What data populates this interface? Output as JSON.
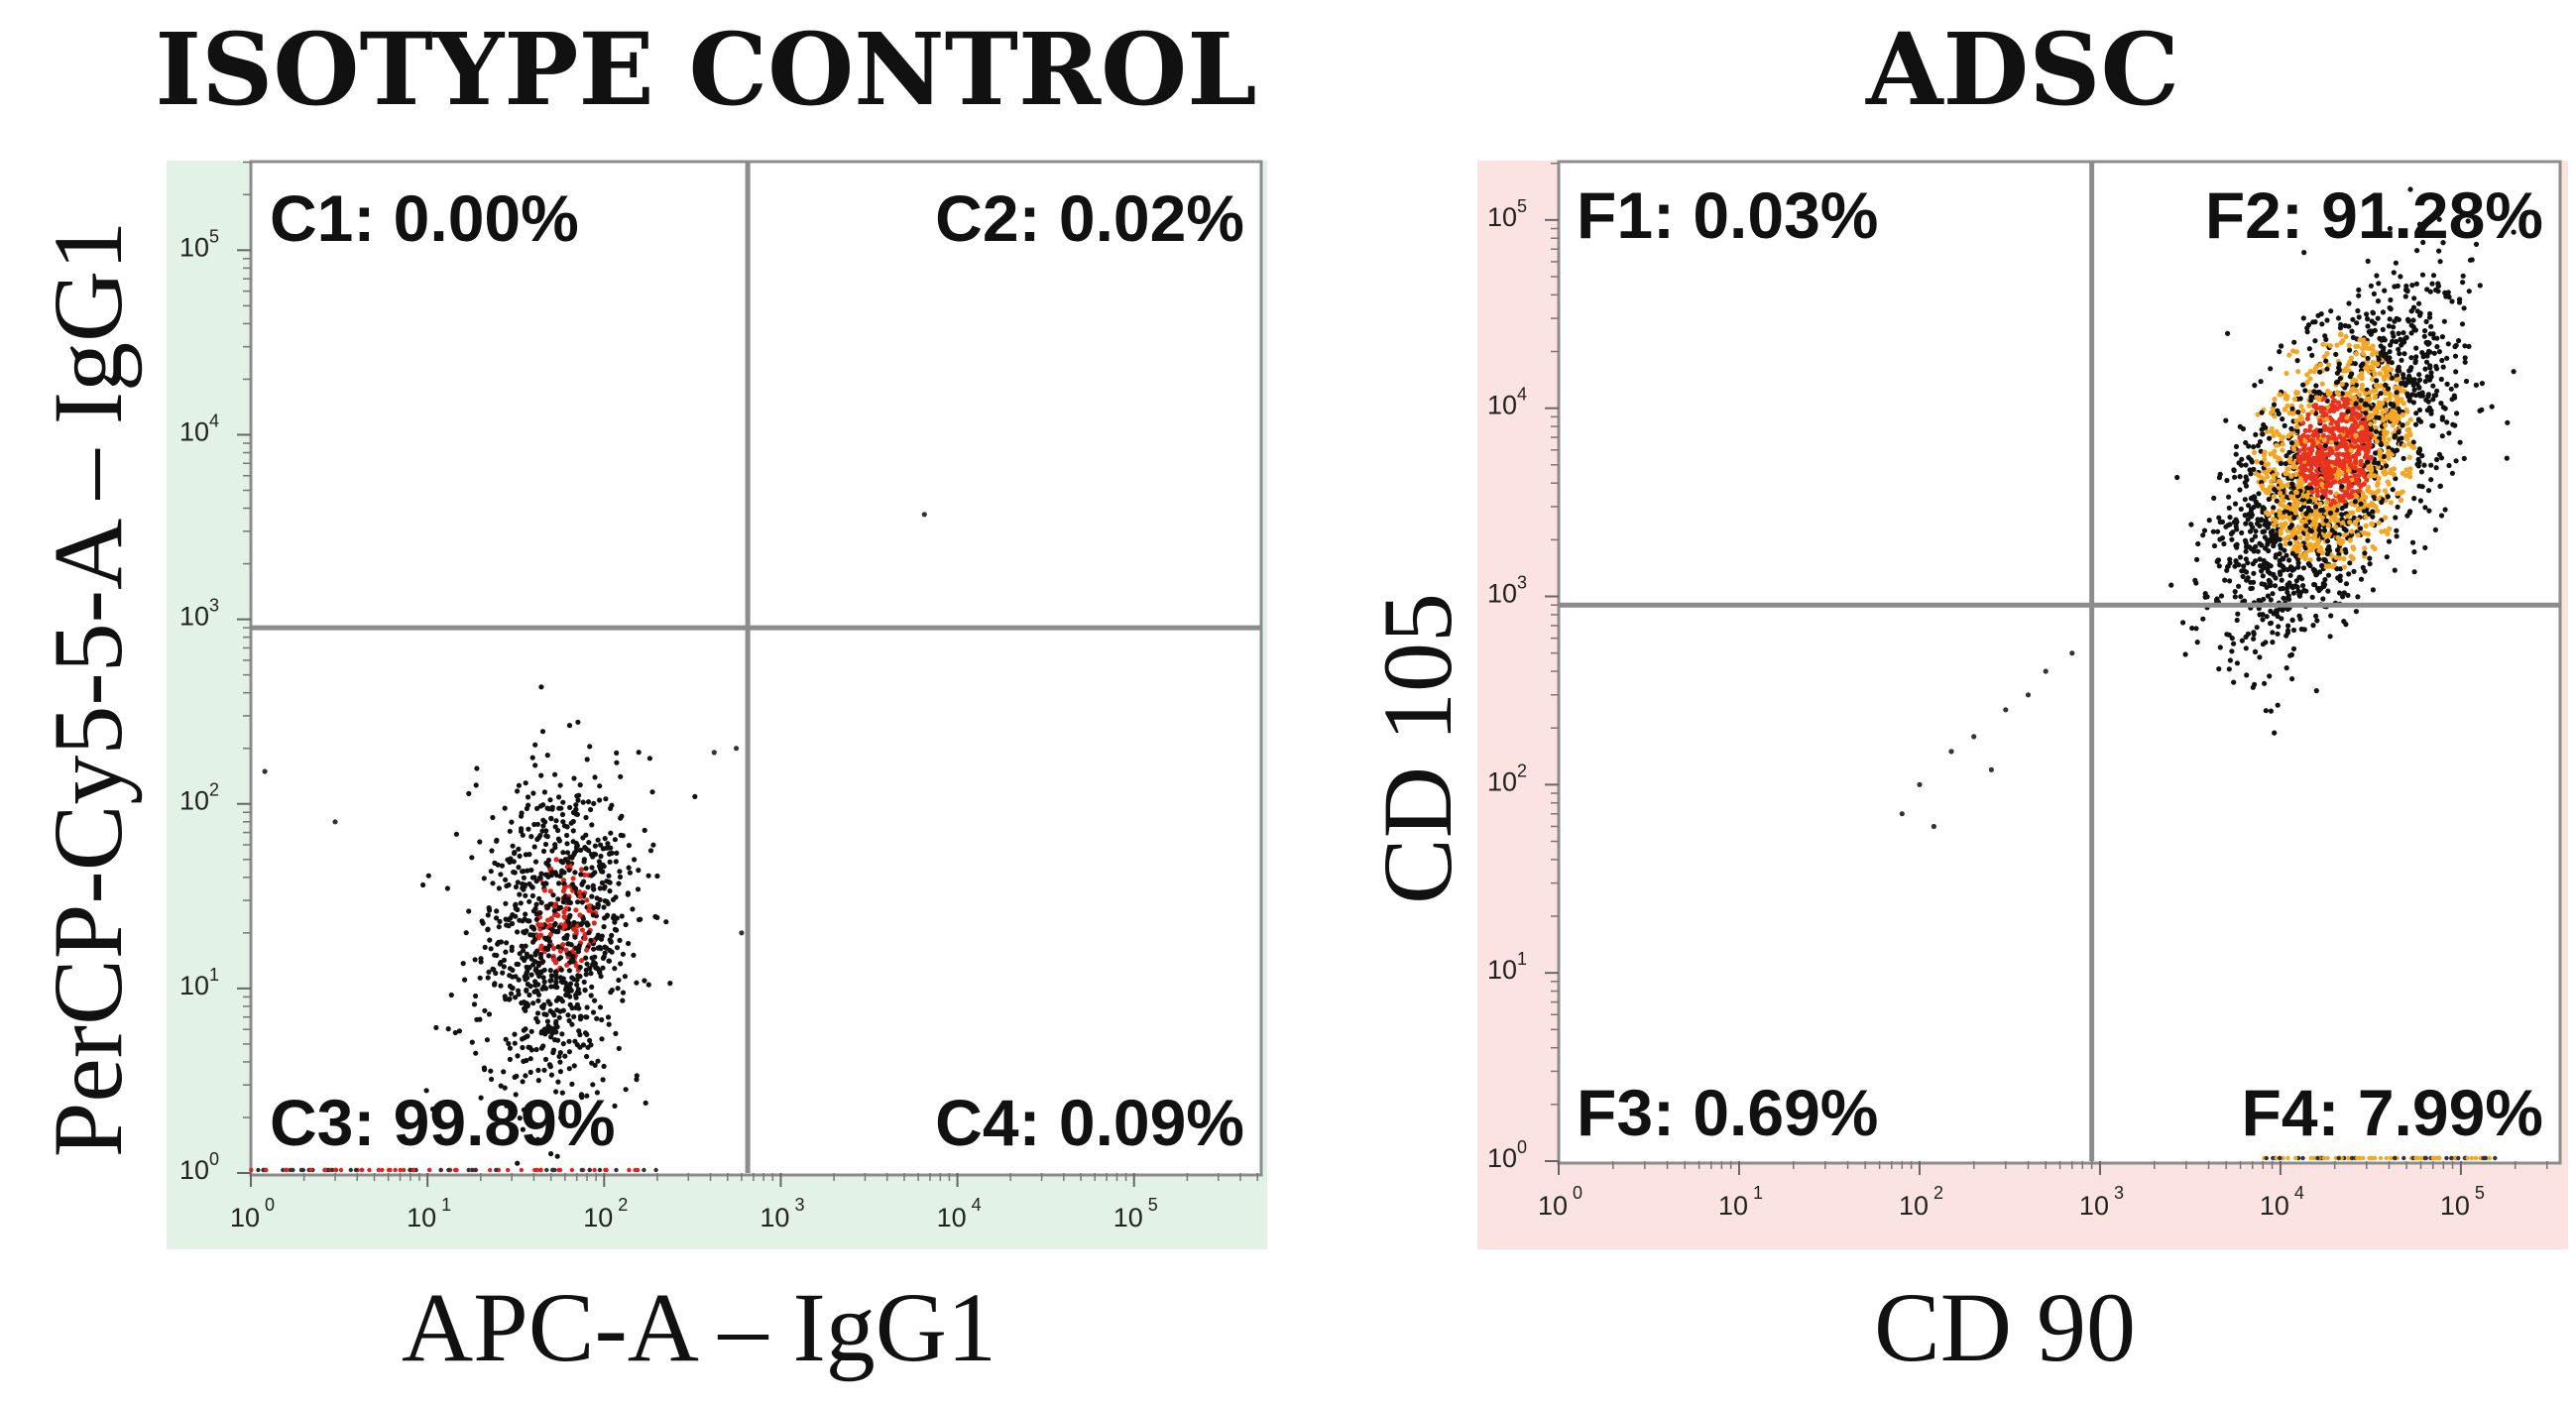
{
  "chart_data": [
    {
      "type": "scatter",
      "title": "ISOTYPE CONTROL",
      "xlabel": "APC-A – IgG1",
      "ylabel": "PerCP-Cy5-5-A – IgG1",
      "xscale": "log",
      "yscale": "log",
      "xlim": [
        1,
        500000
      ],
      "ylim": [
        1,
        300000
      ],
      "xticks": [
        "10",
        "10",
        "10",
        "10",
        "10",
        "10"
      ],
      "xtick_exponents": [
        "0",
        "1",
        "2",
        "3",
        "4",
        "5"
      ],
      "yticks": [
        "10",
        "10",
        "10",
        "10",
        "10",
        "10"
      ],
      "ytick_exponents": [
        "0",
        "1",
        "2",
        "3",
        "4",
        "5"
      ],
      "gate": {
        "x": 650,
        "y": 900
      },
      "background_tint": "#e3f2e6",
      "quadrant_labels": [
        {
          "id": "C1",
          "text": "C1: 0.00%",
          "position": "top-left"
        },
        {
          "id": "C2",
          "text": "C2: 0.02%",
          "position": "top-right"
        },
        {
          "id": "C3",
          "text": "C3: 99.89%",
          "position": "bottom-left"
        },
        {
          "id": "C4",
          "text": "C4: 0.09%",
          "position": "bottom-right"
        }
      ],
      "population": {
        "x_center": 55,
        "y_center": 20,
        "x_log_sd": 0.22,
        "y_log_sd": 0.42,
        "correlation": 0.15,
        "count": 1000,
        "color": "#111111",
        "dense_color": "#e0241b",
        "dense_x_center": 60,
        "dense_y_center": 25
      },
      "outliers": [
        [
          6500,
          3700
        ],
        [
          420,
          190
        ],
        [
          560,
          200
        ],
        [
          600,
          20
        ],
        [
          3,
          80
        ],
        [
          1.2,
          150
        ]
      ]
    },
    {
      "type": "scatter",
      "title": "ADSC",
      "xlabel": "CD 90",
      "ylabel": "CD 105",
      "xscale": "log",
      "yscale": "log",
      "xlim": [
        1,
        500000
      ],
      "ylim": [
        1,
        300000
      ],
      "xticks": [
        "10",
        "10",
        "10",
        "10",
        "10",
        "10"
      ],
      "xtick_exponents": [
        "0",
        "1",
        "2",
        "3",
        "4",
        "5"
      ],
      "yticks": [
        "10",
        "10",
        "10",
        "10",
        "10",
        "10"
      ],
      "ytick_exponents": [
        "0",
        "1",
        "2",
        "3",
        "4",
        "5"
      ],
      "gate": {
        "x": 900,
        "y": 900
      },
      "background_tint": "#fbe3e1",
      "quadrant_labels": [
        {
          "id": "F1",
          "text": "F1: 0.03%",
          "position": "top-left"
        },
        {
          "id": "F2",
          "text": "F2: 91.28%",
          "position": "top-right"
        },
        {
          "id": "F3",
          "text": "F3: 0.69%",
          "position": "bottom-left"
        },
        {
          "id": "F4",
          "text": "F4: 7.99%",
          "position": "bottom-right"
        }
      ],
      "population": {
        "x_center": 20000,
        "y_center": 5000,
        "x_log_sd": 0.3,
        "y_log_sd": 0.42,
        "correlation": 0.6,
        "count": 2600,
        "color": "#111111",
        "dense_color": "#e8331f",
        "mid_color": "#f5a623",
        "dense_x_center": 20000,
        "dense_y_center": 6000
      },
      "outliers": [
        [
          100,
          100
        ],
        [
          150,
          150
        ],
        [
          300,
          250
        ],
        [
          200,
          180
        ],
        [
          400,
          300
        ],
        [
          500,
          400
        ],
        [
          700,
          500
        ],
        [
          120,
          60
        ],
        [
          80,
          70
        ],
        [
          250,
          120
        ]
      ]
    }
  ]
}
